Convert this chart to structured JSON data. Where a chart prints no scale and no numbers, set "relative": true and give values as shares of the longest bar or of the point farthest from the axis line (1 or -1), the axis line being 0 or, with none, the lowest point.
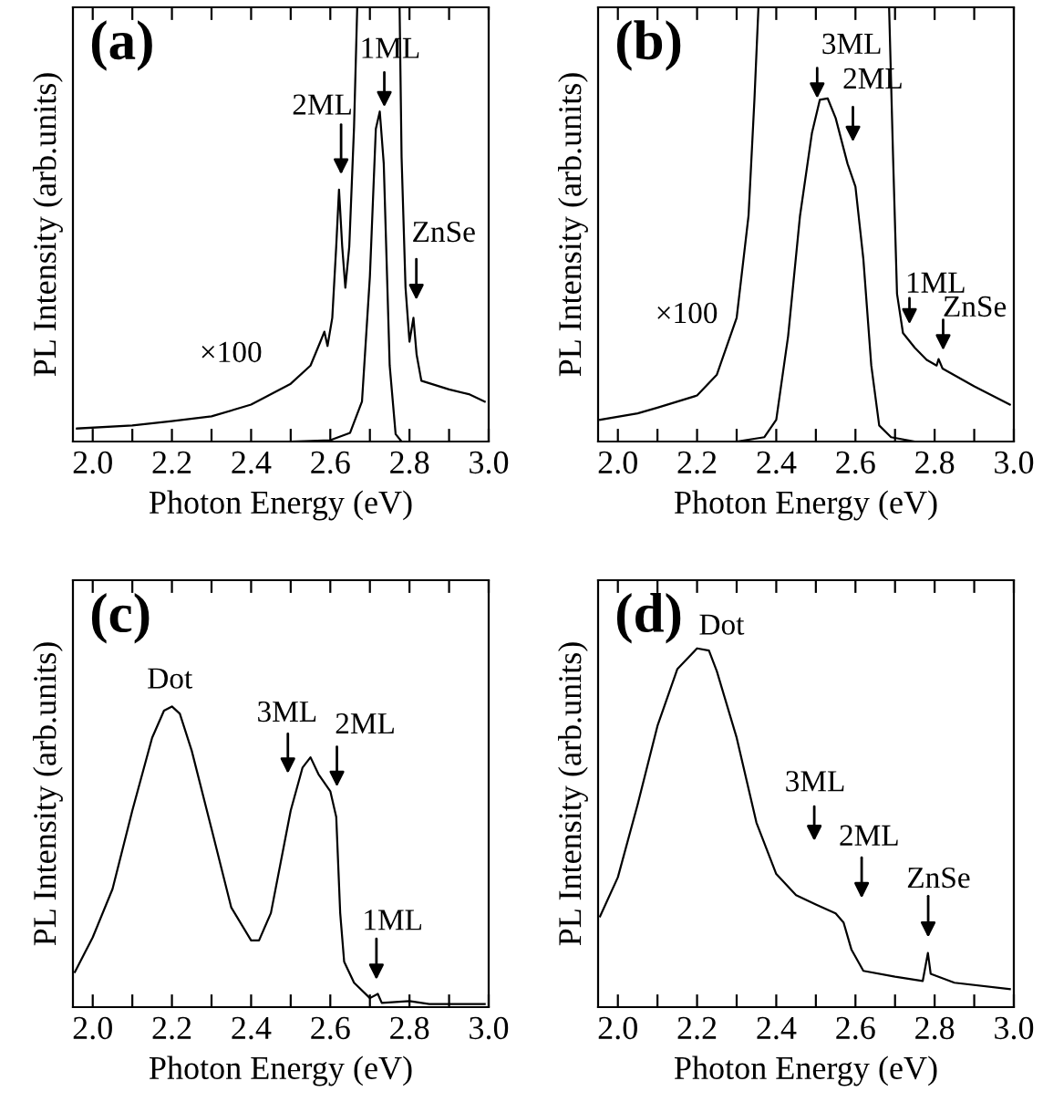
{
  "chart_data": [
    {
      "type": "line",
      "title": "(a)",
      "xlabel": "Photon Energy (eV)",
      "ylabel": "PL Intensity (arb.units)",
      "relative": true,
      "xlim": [
        1.95,
        3.0
      ],
      "xticks": [
        {
          "value": 2.0,
          "label": "2.0"
        },
        {
          "value": 2.1,
          "label": null
        },
        2.2,
        {
          "value": 2.3,
          "label": null
        },
        2.4,
        {
          "value": 2.5,
          "label": null
        },
        2.6,
        {
          "value": 2.7,
          "label": null
        },
        2.8,
        {
          "value": 2.9,
          "label": null
        },
        {
          "value": 3.0,
          "label": "3.0"
        }
      ],
      "series": [
        {
          "color": "#000000",
          "x": [
            1.96,
            2.1,
            2.2,
            2.3,
            2.4,
            2.5,
            2.55,
            2.575,
            2.585,
            2.593,
            2.605,
            2.615,
            2.622,
            2.63,
            2.638,
            2.648,
            2.66,
            2.668,
            2.7,
            2.74,
            2.775,
            2.78,
            2.79,
            2.8,
            2.81,
            2.818,
            2.83,
            2.9,
            2.95,
            2.99
          ],
          "values": [
            0.03,
            0.037,
            0.047,
            0.058,
            0.085,
            0.133,
            0.175,
            0.23,
            0.253,
            0.22,
            0.285,
            0.45,
            0.58,
            0.45,
            0.354,
            0.45,
            0.725,
            1,
            null,
            null,
            1,
            0.656,
            0.354,
            0.23,
            0.285,
            0.2,
            0.14,
            0.12,
            0.109,
            0.092
          ]
        },
        {
          "color": "#000000",
          "x": [
            2.5,
            2.6,
            2.65,
            2.68,
            2.7,
            2.715,
            2.725,
            2.735,
            2.75,
            2.765,
            2.78,
            2.99
          ],
          "values": [
            0,
            0.003,
            0.02,
            0.092,
            0.38,
            0.72,
            0.76,
            0.64,
            0.175,
            0.017,
            0,
            0
          ]
        }
      ],
      "annotations": [
        "×100",
        "2ML",
        "1ML",
        "ZnSe"
      ]
    },
    {
      "type": "line",
      "title": "(b)",
      "xlabel": "Photon Energy (eV)",
      "ylabel": "PL Intensity (arb.units)",
      "relative": true,
      "xlim": [
        1.95,
        3.0
      ],
      "xticks": [
        {
          "value": 2.0,
          "label": "2.0"
        },
        {
          "value": 2.1,
          "label": null
        },
        2.2,
        {
          "value": 2.3,
          "label": null
        },
        2.4,
        {
          "value": 2.5,
          "label": null
        },
        2.6,
        {
          "value": 2.7,
          "label": null
        },
        2.8,
        {
          "value": 2.9,
          "label": null
        },
        {
          "value": 3.0,
          "label": "3.0"
        }
      ],
      "series": [
        {
          "color": "#000000",
          "x": [
            1.955,
            2.05,
            2.1,
            2.2,
            2.25,
            2.3,
            2.33,
            2.345,
            2.355,
            2.5,
            2.685,
            2.695,
            2.705,
            2.72,
            2.75,
            2.78,
            2.805,
            2.81,
            2.82,
            2.9,
            2.99
          ],
          "values": [
            0.05,
            0.065,
            0.078,
            0.106,
            0.154,
            0.285,
            0.52,
            0.79,
            1,
            null,
            1,
            0.656,
            0.34,
            0.25,
            0.216,
            0.188,
            0.175,
            0.19,
            0.168,
            0.127,
            0.085
          ]
        },
        {
          "color": "#000000",
          "x": [
            2.3,
            2.37,
            2.4,
            2.43,
            2.46,
            2.49,
            2.51,
            2.53,
            2.55,
            2.58,
            2.6,
            2.62,
            2.64,
            2.66,
            2.69,
            2.75,
            2.99
          ],
          "values": [
            0,
            0.01,
            0.05,
            0.243,
            0.52,
            0.71,
            0.787,
            0.79,
            0.745,
            0.64,
            0.587,
            0.42,
            0.175,
            0.037,
            0.01,
            0,
            0
          ]
        }
      ],
      "annotations": [
        "×100",
        "3ML",
        "2ML",
        "1ML",
        "ZnSe"
      ]
    },
    {
      "type": "line",
      "title": "(c)",
      "xlabel": "Photon Energy (eV)",
      "ylabel": "PL Intensity (arb.units)",
      "relative": true,
      "xlim": [
        1.95,
        3.0
      ],
      "xticks": [
        {
          "value": 2.0,
          "label": "2.0"
        },
        {
          "value": 2.1,
          "label": null
        },
        2.2,
        {
          "value": 2.3,
          "label": null
        },
        2.4,
        {
          "value": 2.5,
          "label": null
        },
        2.6,
        {
          "value": 2.7,
          "label": null
        },
        2.8,
        {
          "value": 2.9,
          "label": null
        },
        {
          "value": 3.0,
          "label": "3.0"
        }
      ],
      "series": [
        {
          "color": "#000000",
          "x": [
            1.955,
            2.0,
            2.05,
            2.1,
            2.15,
            2.18,
            2.2,
            2.22,
            2.25,
            2.3,
            2.35,
            2.4,
            2.42,
            2.45,
            2.5,
            2.53,
            2.55,
            2.57,
            2.6,
            2.615,
            2.625,
            2.635,
            2.66,
            2.7,
            2.72,
            2.73,
            2.8,
            2.85,
            2.99
          ],
          "values": [
            0.117,
            0.232,
            0.393,
            0.654,
            0.896,
            0.986,
            1,
            0.976,
            0.853,
            0.593,
            0.331,
            0.222,
            0.222,
            0.313,
            0.654,
            0.797,
            0.831,
            0.775,
            0.718,
            0.633,
            0.313,
            0.151,
            0.081,
            0.03,
            0.044,
            0.014,
            0.02,
            0.01,
            0.01
          ]
        }
      ],
      "annotations": [
        "Dot",
        "3ML",
        "2ML",
        "1ML"
      ]
    },
    {
      "type": "line",
      "title": "(d)",
      "xlabel": "Photon Energy (eV)",
      "ylabel": "PL Intensity (arb.units)",
      "relative": true,
      "xlim": [
        1.95,
        3.0
      ],
      "xticks": [
        {
          "value": 2.0,
          "label": "2.0"
        },
        {
          "value": 2.1,
          "label": null
        },
        2.2,
        {
          "value": 2.3,
          "label": null
        },
        2.4,
        {
          "value": 2.5,
          "label": null
        },
        2.6,
        {
          "value": 2.7,
          "label": null
        },
        2.8,
        {
          "value": 2.9,
          "label": null
        },
        {
          "value": 3.0,
          "label": "3.0"
        }
      ],
      "series": [
        {
          "color": "#000000",
          "x": [
            1.955,
            2.0,
            2.05,
            2.1,
            2.15,
            2.2,
            2.23,
            2.25,
            2.3,
            2.35,
            2.4,
            2.45,
            2.5,
            2.55,
            2.57,
            2.59,
            2.62,
            2.7,
            2.77,
            2.783,
            2.79,
            2.85,
            2.99
          ],
          "values": [
            0.253,
            0.362,
            0.565,
            0.784,
            0.942,
            1,
            0.994,
            0.936,
            0.751,
            0.514,
            0.371,
            0.312,
            0.286,
            0.261,
            0.236,
            0.16,
            0.101,
            0.085,
            0.073,
            0.151,
            0.093,
            0.068,
            0.05
          ]
        }
      ],
      "annotations": [
        "Dot",
        "3ML",
        "2ML",
        "ZnSe"
      ]
    }
  ]
}
